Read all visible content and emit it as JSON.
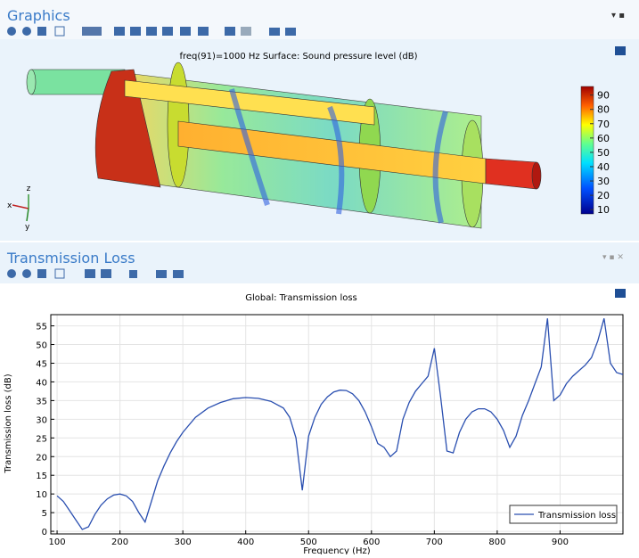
{
  "graphics": {
    "title": "Graphics",
    "plot_title": "freq(91)=1000 Hz   Surface: Sound pressure level (dB)",
    "colorbar": {
      "ticks": [
        90,
        80,
        70,
        60,
        50,
        40,
        30,
        20,
        10
      ],
      "lim": [
        7,
        96
      ]
    },
    "axes": [
      "z",
      "x",
      "y"
    ]
  },
  "chart_data": {
    "type": "line",
    "panel_title": "Transmission Loss",
    "title": "Global: Transmission loss",
    "xlabel": "Frequency (Hz)",
    "ylabel": "Transmission loss (dB)",
    "x": [
      100,
      110,
      120,
      130,
      140,
      150,
      160,
      170,
      180,
      190,
      200,
      210,
      220,
      230,
      240,
      250,
      260,
      270,
      280,
      290,
      300,
      320,
      340,
      360,
      380,
      400,
      420,
      440,
      460,
      470,
      480,
      490,
      500,
      510,
      520,
      530,
      540,
      550,
      560,
      570,
      580,
      590,
      600,
      610,
      620,
      630,
      640,
      650,
      660,
      670,
      680,
      690,
      700,
      710,
      720,
      730,
      740,
      750,
      760,
      770,
      780,
      790,
      800,
      810,
      820,
      830,
      840,
      850,
      860,
      870,
      880,
      890,
      900,
      910,
      920,
      930,
      940,
      950,
      960,
      970,
      980,
      990,
      1000
    ],
    "series": [
      {
        "name": "Transmission loss",
        "color": "#2a4fb0",
        "values": [
          9.5,
          8,
          5.5,
          3,
          0.5,
          1.2,
          4.5,
          7,
          8.7,
          9.7,
          10,
          9.5,
          8,
          5,
          2.5,
          8,
          13.5,
          17.5,
          21,
          24,
          26.5,
          30.5,
          33,
          34.5,
          35.5,
          35.8,
          35.6,
          34.8,
          33,
          30.5,
          25,
          11,
          25.5,
          30.5,
          34,
          36,
          37.3,
          37.8,
          37.7,
          36.8,
          35,
          32,
          28,
          23.5,
          22.5,
          20,
          21.5,
          30,
          34.5,
          37.5,
          39.5,
          41.5,
          49,
          36,
          21.5,
          21,
          26.5,
          30,
          32,
          32.8,
          32.8,
          32,
          30,
          27,
          22.5,
          25.5,
          31,
          35,
          39.5,
          44,
          57,
          35,
          36.5,
          39.5,
          41.5,
          43,
          44.5,
          46.5,
          51,
          57,
          45,
          42.5,
          42
        ]
      }
    ],
    "xlim": [
      90,
      1000
    ],
    "ylim": [
      -0.7,
      58
    ],
    "xticks": [
      100,
      200,
      300,
      400,
      500,
      600,
      700,
      800,
      900
    ],
    "yticks": [
      0,
      5,
      10,
      15,
      20,
      25,
      30,
      35,
      40,
      45,
      50,
      55
    ],
    "grid": true,
    "legend": "lower right"
  }
}
